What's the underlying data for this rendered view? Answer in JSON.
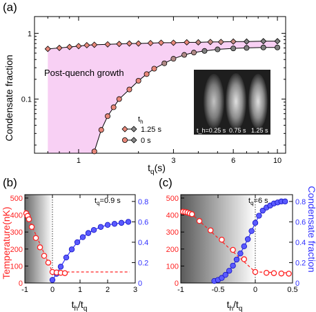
{
  "chart_data": [
    {
      "panel": "(a)",
      "type": "line",
      "xlabel": "t_q(s)",
      "ylabel": "Condensate fraction",
      "x_scale": "log",
      "y_scale": "log",
      "xlim": [
        0.6,
        11
      ],
      "ylim": [
        0.015,
        1.8
      ],
      "x_ticks": [
        1,
        3,
        6,
        10
      ],
      "y_ticks": [
        0.1,
        1
      ],
      "shaded_region_label": "Post-quench growth",
      "shade_color": "#f8d0f4",
      "legend_title": "t_h",
      "legend": [
        {
          "label": "1.25 s",
          "marker": "diamond"
        },
        {
          "label": "0 s",
          "marker": "circle"
        }
      ],
      "inset": {
        "type": "absorption images",
        "labels": [
          "t_h=0.25 s",
          "0.75 s",
          "1.25 s"
        ]
      },
      "series": [
        {
          "marker": "diamond",
          "color": "#e8887a",
          "x": [
            0.7,
            0.8,
            0.9,
            1.0,
            1.1,
            1.2,
            1.4,
            1.6,
            1.8,
            2.0,
            2.3,
            2.6,
            3.0,
            3.5,
            4.0,
            4.6,
            5.2,
            6.0,
            7.0,
            8.5,
            10.0
          ],
          "y": [
            0.58,
            0.6,
            0.62,
            0.64,
            0.66,
            0.67,
            0.68,
            0.69,
            0.7,
            0.7,
            0.71,
            0.72,
            0.72,
            0.73,
            0.73,
            0.74,
            0.74,
            0.75,
            0.75,
            0.76,
            0.76
          ]
        },
        {
          "marker": "circle",
          "color": "#e8887a",
          "x": [
            1.2,
            1.3,
            1.4,
            1.5,
            1.6,
            1.8,
            2.0,
            2.2,
            2.4,
            2.7,
            3.0,
            3.4,
            3.8,
            4.3,
            5.0,
            6.0,
            7.0,
            8.5,
            10.0
          ],
          "y": [
            0.016,
            0.034,
            0.055,
            0.075,
            0.1,
            0.14,
            0.19,
            0.24,
            0.29,
            0.35,
            0.41,
            0.47,
            0.51,
            0.54,
            0.57,
            0.59,
            0.6,
            0.61,
            0.61
          ]
        }
      ]
    },
    {
      "panel": "(b)",
      "type": "scatter",
      "xlabel": "t_h/t_q",
      "ylabel_left": "Temperature(nK)",
      "ylabel_right": "Condensate fraction",
      "annotation": "t_q=0.9 s",
      "xlim": [
        -1,
        3
      ],
      "ylim_left": [
        0,
        520
      ],
      "ylim_right": [
        0,
        0.8667
      ],
      "x_ticks": [
        -1,
        0,
        1,
        2,
        3
      ],
      "y_ticks_left": [
        0,
        100,
        200,
        300,
        400,
        500
      ],
      "y_ticks_right": [
        0,
        0.2,
        0.4,
        0.6,
        0.8
      ],
      "temperature": {
        "color": "#ff2020",
        "x": [
          -0.95,
          -0.9,
          -0.85,
          -0.75,
          -0.6,
          -0.45,
          -0.3,
          -0.15,
          0.0,
          0.15,
          0.3,
          0.45
        ],
        "y": [
          410,
          395,
          375,
          330,
          265,
          210,
          160,
          120,
          65,
          62,
          60,
          58
        ],
        "dashed_fit": {
          "x": [
            -1.0,
            0.0,
            2.8
          ],
          "y": [
            430,
            65,
            65
          ]
        }
      },
      "condensate_fraction": {
        "color": "#3030ff",
        "x": [
          0.0,
          0.15,
          0.3,
          0.5,
          0.7,
          0.9,
          1.1,
          1.3,
          1.5,
          1.75,
          2.0,
          2.25,
          2.5,
          2.75
        ],
        "y": [
          0.03,
          0.09,
          0.16,
          0.25,
          0.33,
          0.4,
          0.45,
          0.49,
          0.52,
          0.55,
          0.57,
          0.58,
          0.59,
          0.6
        ]
      }
    },
    {
      "panel": "(c)",
      "type": "scatter",
      "xlabel": "t_h/t_q",
      "ylabel_left": "Temperature(nK)",
      "ylabel_right": "Condensate fraction",
      "annotation": "t_q=6 s",
      "xlim": [
        -1,
        0.5
      ],
      "ylim_left": [
        0,
        520
      ],
      "ylim_right": [
        0,
        0.8667
      ],
      "x_ticks": [
        -1,
        -0.5,
        0,
        0.5
      ],
      "y_ticks_left": [
        0,
        100,
        200,
        300,
        400,
        500
      ],
      "y_ticks_right": [
        0,
        0.2,
        0.4,
        0.6,
        0.8
      ],
      "temperature": {
        "color": "#ff2020",
        "x": [
          -0.97,
          -0.94,
          -0.91,
          -0.88,
          -0.85,
          -0.75,
          -0.6,
          -0.45,
          -0.3,
          -0.15,
          0.0,
          0.15,
          0.25,
          0.35,
          0.45
        ],
        "y": [
          420,
          418,
          415,
          410,
          405,
          365,
          310,
          255,
          195,
          140,
          65,
          60,
          58,
          56,
          55
        ],
        "dashed_fit": {
          "x": [
            -1.0,
            -0.85,
            0.0,
            0.45
          ],
          "y": [
            420,
            405,
            65,
            60
          ]
        }
      },
      "condensate_fraction": {
        "color": "#3030ff",
        "x": [
          -0.55,
          -0.5,
          -0.45,
          -0.4,
          -0.35,
          -0.3,
          -0.25,
          -0.2,
          -0.15,
          -0.1,
          -0.05,
          0.0,
          0.05,
          0.1,
          0.15,
          0.2,
          0.25,
          0.3,
          0.35,
          0.4
        ],
        "y": [
          0.02,
          0.03,
          0.05,
          0.08,
          0.12,
          0.17,
          0.23,
          0.29,
          0.36,
          0.43,
          0.51,
          0.59,
          0.66,
          0.71,
          0.74,
          0.76,
          0.78,
          0.79,
          0.8,
          0.8
        ]
      }
    }
  ]
}
